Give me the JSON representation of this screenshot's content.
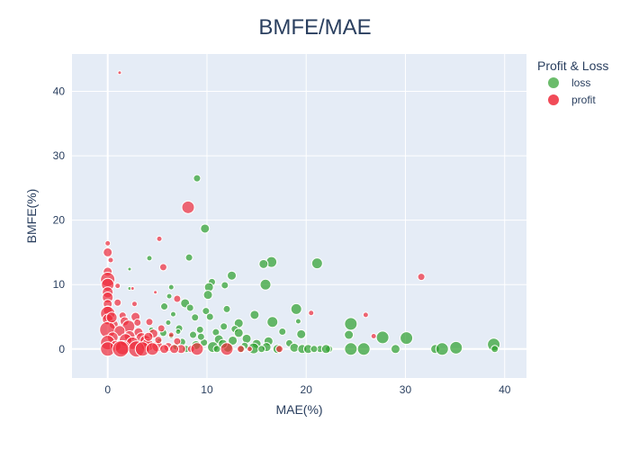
{
  "chart_data": {
    "type": "scatter",
    "title": "BMFE/MAE",
    "xlabel": "MAE(%)",
    "ylabel": "BMFE(%)",
    "xlim": [
      -3.6,
      42.2
    ],
    "ylim": [
      -4.5,
      45.8
    ],
    "xticks": [
      0,
      10,
      20,
      30,
      40
    ],
    "yticks": [
      0,
      10,
      20,
      30,
      40
    ],
    "grid": true,
    "legend": {
      "title": "Profit & Loss",
      "position": "top-right"
    },
    "series": [
      {
        "name": "loss",
        "color": "#2ca02c",
        "points": [
          {
            "x": 9.0,
            "y": 26.5,
            "size": 4
          },
          {
            "x": 9.8,
            "y": 18.7,
            "size": 5
          },
          {
            "x": 8.2,
            "y": 14.2,
            "size": 4
          },
          {
            "x": 4.2,
            "y": 14.1,
            "size": 3
          },
          {
            "x": 16.5,
            "y": 13.5,
            "size": 6
          },
          {
            "x": 15.7,
            "y": 13.2,
            "size": 5
          },
          {
            "x": 21.1,
            "y": 13.3,
            "size": 6
          },
          {
            "x": 2.2,
            "y": 12.4,
            "size": 2
          },
          {
            "x": 12.5,
            "y": 11.4,
            "size": 5
          },
          {
            "x": 10.5,
            "y": 10.4,
            "size": 4
          },
          {
            "x": 10.2,
            "y": 9.6,
            "size": 5
          },
          {
            "x": 11.8,
            "y": 9.9,
            "size": 4
          },
          {
            "x": 15.9,
            "y": 10.0,
            "size": 6
          },
          {
            "x": 6.4,
            "y": 9.6,
            "size": 3
          },
          {
            "x": 2.2,
            "y": 9.4,
            "size": 2
          },
          {
            "x": 10.1,
            "y": 8.4,
            "size": 5
          },
          {
            "x": 6.2,
            "y": 8.2,
            "size": 3
          },
          {
            "x": 7.8,
            "y": 7.1,
            "size": 5
          },
          {
            "x": 5.7,
            "y": 6.6,
            "size": 4
          },
          {
            "x": 8.3,
            "y": 6.4,
            "size": 4
          },
          {
            "x": 9.9,
            "y": 5.9,
            "size": 4
          },
          {
            "x": 12.0,
            "y": 6.2,
            "size": 4
          },
          {
            "x": 19.0,
            "y": 6.2,
            "size": 6
          },
          {
            "x": 14.8,
            "y": 5.3,
            "size": 5
          },
          {
            "x": 8.8,
            "y": 4.9,
            "size": 4
          },
          {
            "x": 10.3,
            "y": 5.0,
            "size": 4
          },
          {
            "x": 13.2,
            "y": 4.0,
            "size": 5
          },
          {
            "x": 16.6,
            "y": 4.2,
            "size": 6
          },
          {
            "x": 19.2,
            "y": 4.3,
            "size": 3
          },
          {
            "x": 24.5,
            "y": 3.9,
            "size": 7
          },
          {
            "x": 6.1,
            "y": 4.1,
            "size": 3
          },
          {
            "x": 11.7,
            "y": 3.5,
            "size": 4
          },
          {
            "x": 12.8,
            "y": 3.1,
            "size": 4
          },
          {
            "x": 9.3,
            "y": 3.0,
            "size": 4
          },
          {
            "x": 7.2,
            "y": 3.2,
            "size": 4
          },
          {
            "x": 10.9,
            "y": 2.6,
            "size": 4
          },
          {
            "x": 13.2,
            "y": 2.5,
            "size": 5
          },
          {
            "x": 17.6,
            "y": 2.7,
            "size": 4
          },
          {
            "x": 19.5,
            "y": 2.3,
            "size": 5
          },
          {
            "x": 24.3,
            "y": 2.2,
            "size": 5
          },
          {
            "x": 8.6,
            "y": 2.2,
            "size": 4
          },
          {
            "x": 6.4,
            "y": 2.0,
            "size": 3
          },
          {
            "x": 5.6,
            "y": 2.5,
            "size": 4
          },
          {
            "x": 27.7,
            "y": 1.8,
            "size": 7
          },
          {
            "x": 30.1,
            "y": 1.7,
            "size": 7
          },
          {
            "x": 14.0,
            "y": 1.6,
            "size": 5
          },
          {
            "x": 11.2,
            "y": 1.5,
            "size": 5
          },
          {
            "x": 16.2,
            "y": 1.2,
            "size": 5
          },
          {
            "x": 18.3,
            "y": 0.9,
            "size": 4
          },
          {
            "x": 12.6,
            "y": 1.3,
            "size": 5
          },
          {
            "x": 15.0,
            "y": 0.8,
            "size": 5
          },
          {
            "x": 13.8,
            "y": 0.5,
            "size": 4
          },
          {
            "x": 10.6,
            "y": 0.3,
            "size": 6
          },
          {
            "x": 12.1,
            "y": 0.2,
            "size": 5
          },
          {
            "x": 14.7,
            "y": 0.1,
            "size": 6
          },
          {
            "x": 16.0,
            "y": 0.3,
            "size": 5
          },
          {
            "x": 17.1,
            "y": 0.0,
            "size": 5
          },
          {
            "x": 18.8,
            "y": 0.2,
            "size": 5
          },
          {
            "x": 19.6,
            "y": 0.0,
            "size": 5
          },
          {
            "x": 20.2,
            "y": 0.0,
            "size": 5
          },
          {
            "x": 21.4,
            "y": 0.0,
            "size": 4
          },
          {
            "x": 22.3,
            "y": 0.0,
            "size": 4
          },
          {
            "x": 24.5,
            "y": 0.0,
            "size": 7
          },
          {
            "x": 25.8,
            "y": 0.0,
            "size": 7
          },
          {
            "x": 29.0,
            "y": 0.0,
            "size": 5
          },
          {
            "x": 33.0,
            "y": 0.0,
            "size": 5
          },
          {
            "x": 33.7,
            "y": 0.0,
            "size": 7
          },
          {
            "x": 35.1,
            "y": 0.2,
            "size": 7
          },
          {
            "x": 38.9,
            "y": 0.7,
            "size": 7
          },
          {
            "x": 39.0,
            "y": 0.0,
            "size": 4
          },
          {
            "x": 7.5,
            "y": 1.1,
            "size": 4
          },
          {
            "x": 8.9,
            "y": 0.6,
            "size": 5
          },
          {
            "x": 6.9,
            "y": 0.4,
            "size": 4
          },
          {
            "x": 9.7,
            "y": 1.0,
            "size": 4
          },
          {
            "x": 11.6,
            "y": 0.8,
            "size": 5
          },
          {
            "x": 4.4,
            "y": 3.0,
            "size": 3
          },
          {
            "x": 3.8,
            "y": 1.9,
            "size": 3
          },
          {
            "x": 7.1,
            "y": 2.7,
            "size": 3
          },
          {
            "x": 5.2,
            "y": 1.2,
            "size": 3
          },
          {
            "x": 6.6,
            "y": 5.4,
            "size": 3
          },
          {
            "x": 9.4,
            "y": 1.9,
            "size": 4
          },
          {
            "x": 13.5,
            "y": 0.0,
            "size": 4
          },
          {
            "x": 15.5,
            "y": 0.0,
            "size": 4
          },
          {
            "x": 20.8,
            "y": 0.0,
            "size": 4
          },
          {
            "x": 22.0,
            "y": 0.0,
            "size": 5
          },
          {
            "x": 11.0,
            "y": 0.0,
            "size": 4
          },
          {
            "x": 7.9,
            "y": 0.0,
            "size": 4
          }
        ]
      },
      {
        "name": "profit",
        "color": "#ef2b3b",
        "points": [
          {
            "x": 1.2,
            "y": 42.9,
            "size": 2
          },
          {
            "x": 8.1,
            "y": 22.0,
            "size": 7
          },
          {
            "x": 5.2,
            "y": 17.1,
            "size": 3
          },
          {
            "x": 0.0,
            "y": 16.4,
            "size": 3
          },
          {
            "x": 0.0,
            "y": 15.0,
            "size": 5
          },
          {
            "x": 0.3,
            "y": 13.8,
            "size": 3
          },
          {
            "x": 5.6,
            "y": 12.7,
            "size": 4
          },
          {
            "x": 0.0,
            "y": 12.0,
            "size": 5
          },
          {
            "x": 31.6,
            "y": 11.2,
            "size": 4
          },
          {
            "x": 0.0,
            "y": 10.8,
            "size": 8
          },
          {
            "x": 0.0,
            "y": 10.0,
            "size": 7
          },
          {
            "x": 0.0,
            "y": 8.8,
            "size": 6
          },
          {
            "x": 2.5,
            "y": 9.4,
            "size": 2
          },
          {
            "x": 4.8,
            "y": 8.8,
            "size": 2
          },
          {
            "x": 0.0,
            "y": 8.0,
            "size": 6
          },
          {
            "x": 7.0,
            "y": 7.8,
            "size": 4
          },
          {
            "x": 1.0,
            "y": 7.2,
            "size": 4
          },
          {
            "x": 0.0,
            "y": 7.0,
            "size": 5
          },
          {
            "x": 2.7,
            "y": 7.0,
            "size": 3
          },
          {
            "x": 0.0,
            "y": 6.0,
            "size": 5
          },
          {
            "x": 0.0,
            "y": 5.5,
            "size": 8
          },
          {
            "x": 20.5,
            "y": 5.6,
            "size": 3
          },
          {
            "x": 26.0,
            "y": 5.3,
            "size": 3
          },
          {
            "x": 1.5,
            "y": 5.2,
            "size": 4
          },
          {
            "x": 2.8,
            "y": 5.0,
            "size": 5
          },
          {
            "x": 0.0,
            "y": 4.6,
            "size": 6
          },
          {
            "x": 1.7,
            "y": 4.3,
            "size": 5
          },
          {
            "x": 4.2,
            "y": 4.2,
            "size": 4
          },
          {
            "x": 0.6,
            "y": 3.8,
            "size": 5
          },
          {
            "x": 2.1,
            "y": 3.5,
            "size": 7
          },
          {
            "x": 5.4,
            "y": 3.2,
            "size": 4
          },
          {
            "x": 0.0,
            "y": 3.0,
            "size": 9
          },
          {
            "x": 1.2,
            "y": 2.8,
            "size": 6
          },
          {
            "x": 3.1,
            "y": 2.6,
            "size": 5
          },
          {
            "x": 4.6,
            "y": 2.4,
            "size": 5
          },
          {
            "x": 2.2,
            "y": 2.0,
            "size": 6
          },
          {
            "x": 0.5,
            "y": 1.8,
            "size": 6
          },
          {
            "x": 3.4,
            "y": 1.7,
            "size": 6
          },
          {
            "x": 26.8,
            "y": 2.0,
            "size": 3
          },
          {
            "x": 1.8,
            "y": 1.4,
            "size": 7
          },
          {
            "x": 3.8,
            "y": 1.3,
            "size": 6
          },
          {
            "x": 0.0,
            "y": 1.0,
            "size": 8
          },
          {
            "x": 2.5,
            "y": 0.9,
            "size": 7
          },
          {
            "x": 4.0,
            "y": 0.6,
            "size": 7
          },
          {
            "x": 5.0,
            "y": 0.4,
            "size": 6
          },
          {
            "x": 6.1,
            "y": 0.3,
            "size": 5
          },
          {
            "x": 0.8,
            "y": 0.5,
            "size": 6
          },
          {
            "x": 1.5,
            "y": 0.2,
            "size": 8
          },
          {
            "x": 2.9,
            "y": 0.0,
            "size": 9
          },
          {
            "x": 3.5,
            "y": 0.0,
            "size": 8
          },
          {
            "x": 0.0,
            "y": 0.0,
            "size": 8
          },
          {
            "x": 4.5,
            "y": 0.0,
            "size": 7
          },
          {
            "x": 5.7,
            "y": 0.0,
            "size": 5
          },
          {
            "x": 7.4,
            "y": 0.0,
            "size": 5
          },
          {
            "x": 8.4,
            "y": 0.0,
            "size": 4
          },
          {
            "x": 9.0,
            "y": 0.0,
            "size": 7
          },
          {
            "x": 12.0,
            "y": 0.0,
            "size": 7
          },
          {
            "x": 13.4,
            "y": 0.0,
            "size": 4
          },
          {
            "x": 14.3,
            "y": 0.0,
            "size": 3
          },
          {
            "x": 17.3,
            "y": 0.0,
            "size": 4
          },
          {
            "x": 7.0,
            "y": 1.2,
            "size": 4
          },
          {
            "x": 6.4,
            "y": 2.2,
            "size": 3
          },
          {
            "x": 1.0,
            "y": 9.8,
            "size": 3
          },
          {
            "x": 0.4,
            "y": 4.9,
            "size": 6
          },
          {
            "x": 3.0,
            "y": 4.1,
            "size": 4
          },
          {
            "x": 4.1,
            "y": 1.9,
            "size": 5
          },
          {
            "x": 1.3,
            "y": 0.0,
            "size": 9
          },
          {
            "x": 6.7,
            "y": 0.0,
            "size": 5
          },
          {
            "x": 5.1,
            "y": 1.4,
            "size": 4
          }
        ]
      }
    ]
  }
}
